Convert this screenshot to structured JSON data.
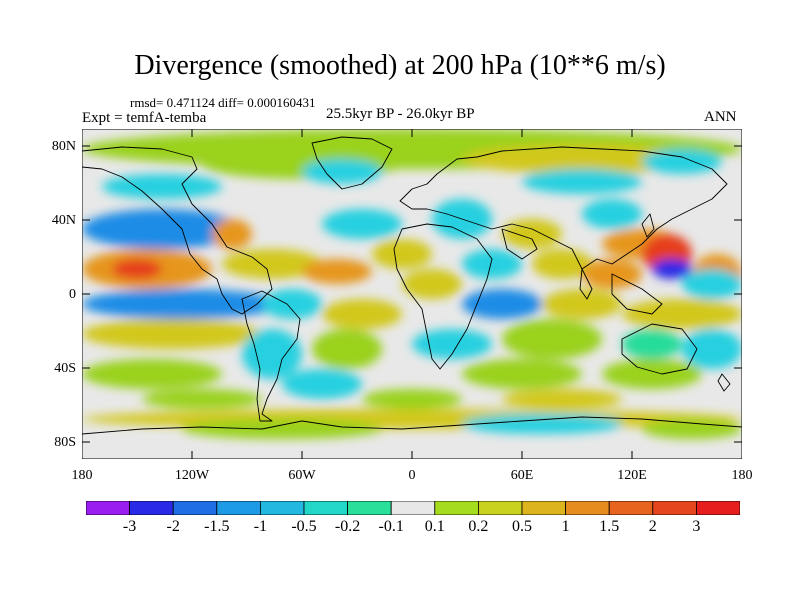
{
  "title": "Divergence (smoothed) at 200 hPa (10**6 m/s)",
  "stats": "rmsd= 0.471124  diff= 0.000160431",
  "expt": "Expt = temfA-temba",
  "period": "25.5kyr BP - 26.0kyr BP",
  "season": "ANN",
  "y_axis_labels": [
    "80N",
    "40N",
    "0",
    "40S",
    "80S"
  ],
  "x_axis_labels": [
    "180",
    "120W",
    "60W",
    "0",
    "60E",
    "120E",
    "180"
  ],
  "colorbar": {
    "levels": [
      "-3",
      "-2",
      "-1.5",
      "-1",
      "-0.5",
      "-0.2",
      "-0.1",
      "0.1",
      "0.2",
      "0.5",
      "1",
      "1.5",
      "2",
      "3"
    ],
    "colors": [
      "#9a1ef0",
      "#2a2ae6",
      "#1e6ee6",
      "#1e9be6",
      "#22b8e0",
      "#22d6c8",
      "#28e09a",
      "#e8e8e8",
      "#a6dc1e",
      "#c8d21e",
      "#dcb41e",
      "#e68c1e",
      "#e6641e",
      "#e6461e",
      "#e61e1e"
    ]
  },
  "field_colors": {
    "neutral": "#e8e8e8",
    "ocean_light": "#9ad21e",
    "orange": "#e6961e",
    "red": "#e63c1e",
    "yellow": "#d2c81e",
    "cyan": "#28d0e0",
    "blue": "#1e8ce6",
    "deep_blue": "#2a2ae6",
    "green": "#28dc9a"
  }
}
